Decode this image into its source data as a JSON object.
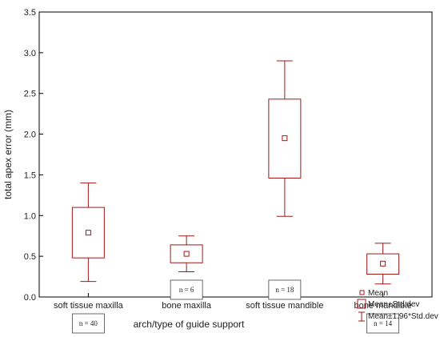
{
  "chart_data": {
    "type": "box",
    "xlabel": "arch/type of guide support",
    "ylabel": "total apex error (mm)",
    "ylim": [
      0.0,
      3.5
    ],
    "yticks": [
      "0.0",
      "0.5",
      "1.0",
      "1.5",
      "2.0",
      "2.5",
      "3.0",
      "3.5"
    ],
    "categories": [
      "soft tissue maxilla",
      "bone maxilla",
      "soft tissue mandible",
      "bone mandible"
    ],
    "mean": [
      0.79,
      0.53,
      1.95,
      0.41
    ],
    "box_low": [
      0.48,
      0.42,
      1.46,
      0.28
    ],
    "box_high": [
      1.1,
      0.64,
      2.43,
      0.53
    ],
    "whisker_low": [
      0.19,
      0.31,
      0.99,
      0.16
    ],
    "whisker_high": [
      1.4,
      0.75,
      2.9,
      0.66
    ],
    "n_labels": [
      "n = 40",
      "n = 6",
      "n = 18",
      "n = 14"
    ],
    "n_label_placement": [
      "below-axis",
      "above-axis",
      "above-axis",
      "below-axis"
    ],
    "legend": {
      "placement": "bottom-right",
      "items": [
        {
          "symbol": "mean-marker",
          "label": "Mean"
        },
        {
          "symbol": "box",
          "label": "Mean±Std.dev"
        },
        {
          "symbol": "whisker",
          "label": "Mean±1.96*Std.dev"
        }
      ]
    },
    "grid": false,
    "color": "#a01818"
  }
}
